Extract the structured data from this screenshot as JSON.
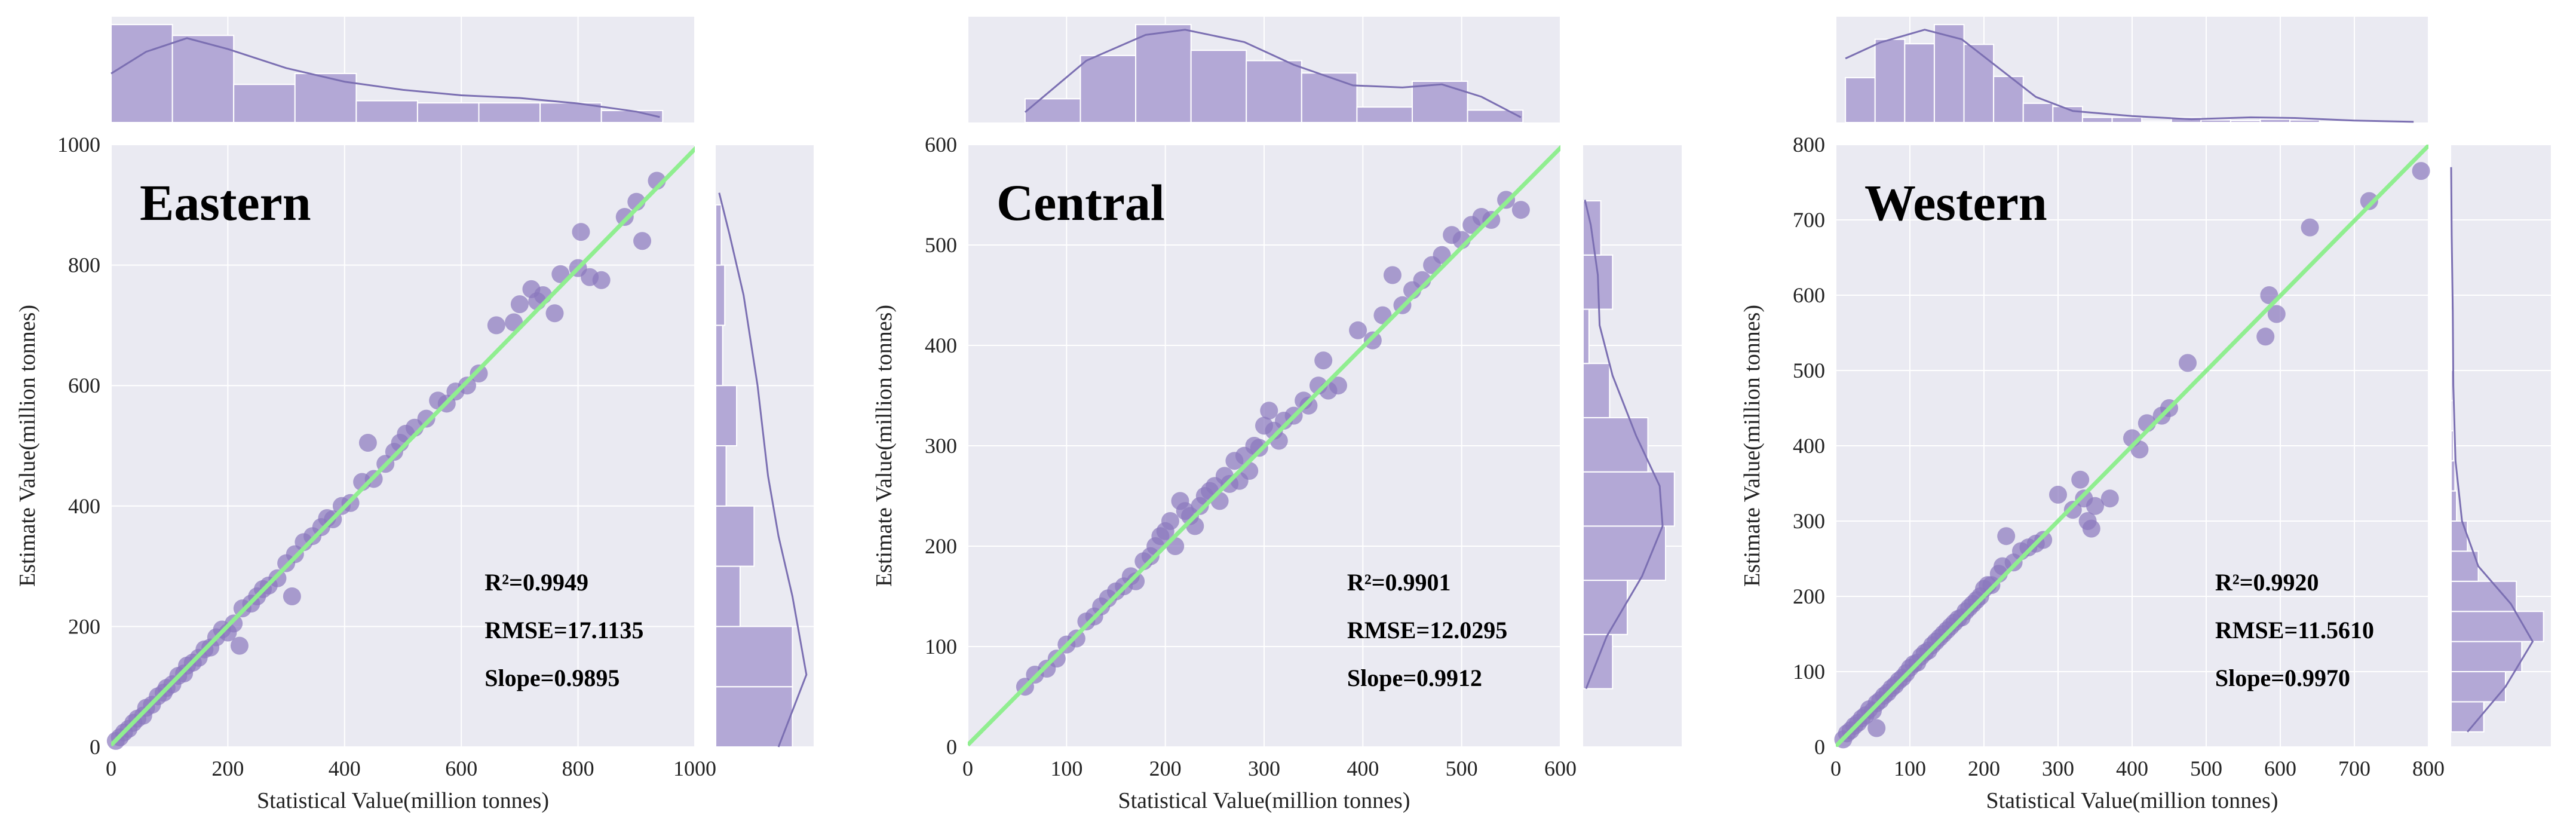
{
  "figure_title": "",
  "colors": {
    "panel_bg": "#eaeaf2",
    "grid": "#ffffff",
    "point": "#8a77bd",
    "hist_fill": "#b3a8d6",
    "kde": "#7b6fb2",
    "fit_line": "#90ee90"
  },
  "chart_data": [
    {
      "type": "scatter",
      "title": "Eastern",
      "xlabel": "Statistical Value(million tonnes)",
      "ylabel": "Estimate Value(million tonnes)",
      "xlim": [
        0,
        1000
      ],
      "ylim": [
        0,
        1000
      ],
      "xticks": [
        "0",
        "200",
        "400",
        "600",
        "800",
        "1000"
      ],
      "yticks": [
        "0",
        "200",
        "400",
        "600",
        "800",
        "1000"
      ],
      "fit_line": {
        "slope": 0.9895,
        "intercept": 3
      },
      "stats": {
        "r2": "R²=0.9949",
        "rmse": "RMSE=17.1135",
        "slope": "Slope=0.9895"
      },
      "points": [
        [
          8,
          10
        ],
        [
          15,
          16
        ],
        [
          22,
          24
        ],
        [
          30,
          30
        ],
        [
          38,
          40
        ],
        [
          45,
          47
        ],
        [
          55,
          52
        ],
        [
          60,
          65
        ],
        [
          70,
          70
        ],
        [
          80,
          84
        ],
        [
          90,
          90
        ],
        [
          95,
          98
        ],
        [
          105,
          104
        ],
        [
          115,
          118
        ],
        [
          125,
          122
        ],
        [
          130,
          135
        ],
        [
          140,
          140
        ],
        [
          150,
          148
        ],
        [
          160,
          162
        ],
        [
          170,
          165
        ],
        [
          180,
          182
        ],
        [
          190,
          195
        ],
        [
          200,
          190
        ],
        [
          210,
          205
        ],
        [
          220,
          168
        ],
        [
          225,
          230
        ],
        [
          240,
          238
        ],
        [
          250,
          250
        ],
        [
          260,
          262
        ],
        [
          270,
          268
        ],
        [
          285,
          280
        ],
        [
          300,
          305
        ],
        [
          310,
          250
        ],
        [
          315,
          320
        ],
        [
          330,
          340
        ],
        [
          345,
          350
        ],
        [
          360,
          365
        ],
        [
          370,
          380
        ],
        [
          380,
          378
        ],
        [
          395,
          400
        ],
        [
          410,
          405
        ],
        [
          430,
          440
        ],
        [
          440,
          505
        ],
        [
          450,
          445
        ],
        [
          470,
          470
        ],
        [
          485,
          490
        ],
        [
          495,
          505
        ],
        [
          505,
          520
        ],
        [
          520,
          530
        ],
        [
          540,
          545
        ],
        [
          560,
          575
        ],
        [
          575,
          570
        ],
        [
          590,
          590
        ],
        [
          610,
          600
        ],
        [
          630,
          620
        ],
        [
          660,
          700
        ],
        [
          690,
          705
        ],
        [
          700,
          735
        ],
        [
          720,
          760
        ],
        [
          730,
          740
        ],
        [
          740,
          750
        ],
        [
          760,
          720
        ],
        [
          770,
          785
        ],
        [
          800,
          795
        ],
        [
          805,
          855
        ],
        [
          820,
          780
        ],
        [
          840,
          775
        ],
        [
          880,
          880
        ],
        [
          900,
          905
        ],
        [
          910,
          840
        ],
        [
          935,
          940
        ]
      ],
      "x_hist": {
        "edges": [
          0,
          105,
          210,
          315,
          420,
          525,
          630,
          735,
          840,
          945
        ],
        "counts": [
          18,
          16,
          7,
          9,
          4,
          3.6,
          3.6,
          3.6,
          2.2
        ]
      },
      "x_kde": [
        [
          0,
          9
        ],
        [
          60,
          13
        ],
        [
          130,
          15.5
        ],
        [
          200,
          13.5
        ],
        [
          300,
          10
        ],
        [
          400,
          7.5
        ],
        [
          500,
          6
        ],
        [
          600,
          5
        ],
        [
          700,
          4.5
        ],
        [
          800,
          3.5
        ],
        [
          900,
          2
        ],
        [
          940,
          1
        ]
      ],
      "y_hist": {
        "edges": [
          0,
          100,
          200,
          300,
          400,
          500,
          600,
          700,
          800,
          900
        ],
        "counts": [
          11,
          11,
          3.5,
          5.5,
          1.5,
          3,
          1,
          1.3,
          0.8
        ]
      },
      "y_kde": [
        [
          0,
          9
        ],
        [
          120,
          13
        ],
        [
          250,
          11
        ],
        [
          350,
          9
        ],
        [
          450,
          7.5
        ],
        [
          600,
          6
        ],
        [
          750,
          4
        ],
        [
          850,
          2
        ],
        [
          920,
          0.5
        ]
      ]
    },
    {
      "type": "scatter",
      "title": "Central",
      "xlabel": "Statistical Value(million tonnes)",
      "ylabel": "Estimate Value(million tonnes)",
      "xlim": [
        0,
        600
      ],
      "ylim": [
        0,
        600
      ],
      "xticks": [
        "0",
        "100",
        "200",
        "300",
        "400",
        "500",
        "600"
      ],
      "yticks": [
        "0",
        "100",
        "200",
        "300",
        "400",
        "500",
        "600"
      ],
      "fit_line": {
        "slope": 0.9912,
        "intercept": 2
      },
      "stats": {
        "r2": "R²=0.9901",
        "rmse": "RMSE=12.0295",
        "slope": "Slope=0.9912"
      },
      "points": [
        [
          58,
          60
        ],
        [
          68,
          72
        ],
        [
          80,
          78
        ],
        [
          90,
          88
        ],
        [
          100,
          102
        ],
        [
          110,
          108
        ],
        [
          120,
          125
        ],
        [
          128,
          130
        ],
        [
          135,
          140
        ],
        [
          142,
          148
        ],
        [
          150,
          155
        ],
        [
          158,
          160
        ],
        [
          165,
          170
        ],
        [
          170,
          165
        ],
        [
          178,
          185
        ],
        [
          185,
          190
        ],
        [
          190,
          200
        ],
        [
          195,
          210
        ],
        [
          200,
          215
        ],
        [
          205,
          225
        ],
        [
          210,
          200
        ],
        [
          215,
          245
        ],
        [
          220,
          235
        ],
        [
          225,
          230
        ],
        [
          230,
          220
        ],
        [
          235,
          240
        ],
        [
          240,
          250
        ],
        [
          245,
          255
        ],
        [
          250,
          260
        ],
        [
          255,
          245
        ],
        [
          260,
          270
        ],
        [
          265,
          262
        ],
        [
          270,
          285
        ],
        [
          275,
          265
        ],
        [
          280,
          290
        ],
        [
          285,
          275
        ],
        [
          290,
          300
        ],
        [
          295,
          298
        ],
        [
          300,
          320
        ],
        [
          305,
          335
        ],
        [
          310,
          315
        ],
        [
          315,
          305
        ],
        [
          320,
          325
        ],
        [
          330,
          330
        ],
        [
          340,
          345
        ],
        [
          345,
          340
        ],
        [
          355,
          360
        ],
        [
          360,
          385
        ],
        [
          365,
          355
        ],
        [
          375,
          360
        ],
        [
          395,
          415
        ],
        [
          410,
          405
        ],
        [
          420,
          430
        ],
        [
          430,
          470
        ],
        [
          440,
          440
        ],
        [
          450,
          455
        ],
        [
          460,
          465
        ],
        [
          470,
          480
        ],
        [
          480,
          490
        ],
        [
          490,
          510
        ],
        [
          500,
          505
        ],
        [
          510,
          520
        ],
        [
          520,
          528
        ],
        [
          530,
          525
        ],
        [
          545,
          545
        ],
        [
          560,
          535
        ]
      ],
      "x_hist": {
        "edges": [
          58,
          114,
          170,
          226,
          282,
          338,
          394,
          450,
          506,
          562
        ],
        "counts": [
          2.3,
          6.5,
          9.5,
          7,
          6,
          4.8,
          1.5,
          4,
          1.2
        ]
      },
      "x_kde": [
        [
          58,
          1
        ],
        [
          120,
          6
        ],
        [
          180,
          8.5
        ],
        [
          220,
          9
        ],
        [
          280,
          7.8
        ],
        [
          330,
          5.6
        ],
        [
          390,
          3.6
        ],
        [
          440,
          3.4
        ],
        [
          480,
          3.7
        ],
        [
          520,
          2.5
        ],
        [
          560,
          0.5
        ]
      ],
      "y_hist": {
        "edges": [
          58,
          112,
          166,
          220,
          274,
          328,
          382,
          436,
          490,
          544
        ],
        "counts": [
          5,
          7.5,
          14,
          15.5,
          11,
          4.5,
          1,
          5,
          3
        ]
      },
      "y_kde": [
        [
          58,
          0.5
        ],
        [
          110,
          4
        ],
        [
          170,
          10
        ],
        [
          220,
          13.5
        ],
        [
          260,
          13
        ],
        [
          310,
          9
        ],
        [
          370,
          5
        ],
        [
          420,
          2.8
        ],
        [
          470,
          2.5
        ],
        [
          520,
          1.3
        ],
        [
          545,
          0.3
        ]
      ]
    },
    {
      "type": "scatter",
      "title": "Western",
      "xlabel": "Statistical Value(million tonnes)",
      "ylabel": "Estimate Value(million tonnes)",
      "xlim": [
        0,
        800
      ],
      "ylim": [
        0,
        800
      ],
      "xticks": [
        "0",
        "100",
        "200",
        "300",
        "400",
        "500",
        "600",
        "700",
        "800"
      ],
      "yticks": [
        "0",
        "100",
        "200",
        "300",
        "400",
        "500",
        "600",
        "700",
        "800"
      ],
      "fit_line": {
        "slope": 0.997,
        "intercept": 1
      },
      "stats": {
        "r2": "R²=0.9920",
        "rmse": "RMSE=11.5610",
        "slope": "Slope=0.9970"
      },
      "points": [
        [
          10,
          10
        ],
        [
          15,
          18
        ],
        [
          20,
          22
        ],
        [
          25,
          28
        ],
        [
          30,
          32
        ],
        [
          35,
          38
        ],
        [
          40,
          42
        ],
        [
          45,
          50
        ],
        [
          50,
          48
        ],
        [
          55,
          58
        ],
        [
          55,
          25
        ],
        [
          60,
          62
        ],
        [
          65,
          68
        ],
        [
          70,
          72
        ],
        [
          75,
          78
        ],
        [
          80,
          82
        ],
        [
          85,
          88
        ],
        [
          90,
          92
        ],
        [
          95,
          98
        ],
        [
          100,
          105
        ],
        [
          105,
          110
        ],
        [
          110,
          112
        ],
        [
          115,
          120
        ],
        [
          120,
          125
        ],
        [
          125,
          128
        ],
        [
          130,
          135
        ],
        [
          135,
          140
        ],
        [
          140,
          145
        ],
        [
          145,
          150
        ],
        [
          150,
          155
        ],
        [
          155,
          160
        ],
        [
          160,
          165
        ],
        [
          165,
          170
        ],
        [
          170,
          172
        ],
        [
          175,
          180
        ],
        [
          180,
          185
        ],
        [
          185,
          190
        ],
        [
          190,
          195
        ],
        [
          195,
          200
        ],
        [
          200,
          210
        ],
        [
          205,
          215
        ],
        [
          210,
          215
        ],
        [
          220,
          230
        ],
        [
          225,
          240
        ],
        [
          230,
          280
        ],
        [
          240,
          245
        ],
        [
          250,
          260
        ],
        [
          260,
          265
        ],
        [
          270,
          270
        ],
        [
          280,
          275
        ],
        [
          300,
          335
        ],
        [
          320,
          315
        ],
        [
          330,
          355
        ],
        [
          335,
          330
        ],
        [
          340,
          300
        ],
        [
          345,
          290
        ],
        [
          350,
          320
        ],
        [
          370,
          330
        ],
        [
          400,
          410
        ],
        [
          410,
          395
        ],
        [
          420,
          430
        ],
        [
          440,
          440
        ],
        [
          450,
          450
        ],
        [
          475,
          510
        ],
        [
          580,
          545
        ],
        [
          585,
          600
        ],
        [
          595,
          575
        ],
        [
          640,
          690
        ],
        [
          720,
          725
        ],
        [
          790,
          765
        ]
      ],
      "x_hist": {
        "edges": [
          13,
          53,
          93,
          133,
          173,
          213,
          253,
          293,
          333,
          373,
          413,
          453,
          493,
          533,
          573,
          613,
          653,
          693,
          733,
          773
        ],
        "counts": [
          7,
          13,
          12.3,
          15.3,
          12.2,
          7.2,
          3,
          2.5,
          0.8,
          0.8,
          0.2,
          0.8,
          0.4,
          0.3,
          0.5,
          0.4,
          0.1,
          0.1,
          0.1
        ]
      },
      "x_kde": [
        [
          13,
          10
        ],
        [
          60,
          12.5
        ],
        [
          120,
          14.5
        ],
        [
          170,
          13
        ],
        [
          220,
          8.5
        ],
        [
          270,
          4
        ],
        [
          320,
          1.8
        ],
        [
          400,
          1
        ],
        [
          480,
          0.5
        ],
        [
          560,
          0.8
        ],
        [
          620,
          0.7
        ],
        [
          700,
          0.3
        ],
        [
          780,
          0.1
        ]
      ],
      "y_hist": {
        "edges": [
          20,
          60,
          100,
          140,
          180,
          220,
          260,
          300,
          340,
          380,
          420,
          460,
          500,
          540,
          580,
          620,
          660,
          700,
          740
        ],
        "counts": [
          6,
          10,
          13,
          17,
          12,
          5,
          3,
          1,
          0.7,
          0.4,
          0.3,
          0.3,
          0.2,
          0.2,
          0.3,
          0.2,
          0.1,
          0.1
        ]
      },
      "y_kde": [
        [
          20,
          3
        ],
        [
          80,
          10
        ],
        [
          140,
          15
        ],
        [
          190,
          11
        ],
        [
          240,
          5
        ],
        [
          300,
          2
        ],
        [
          380,
          0.8
        ],
        [
          480,
          0.4
        ],
        [
          580,
          0.3
        ],
        [
          680,
          0.1
        ],
        [
          770,
          0
        ]
      ]
    }
  ]
}
